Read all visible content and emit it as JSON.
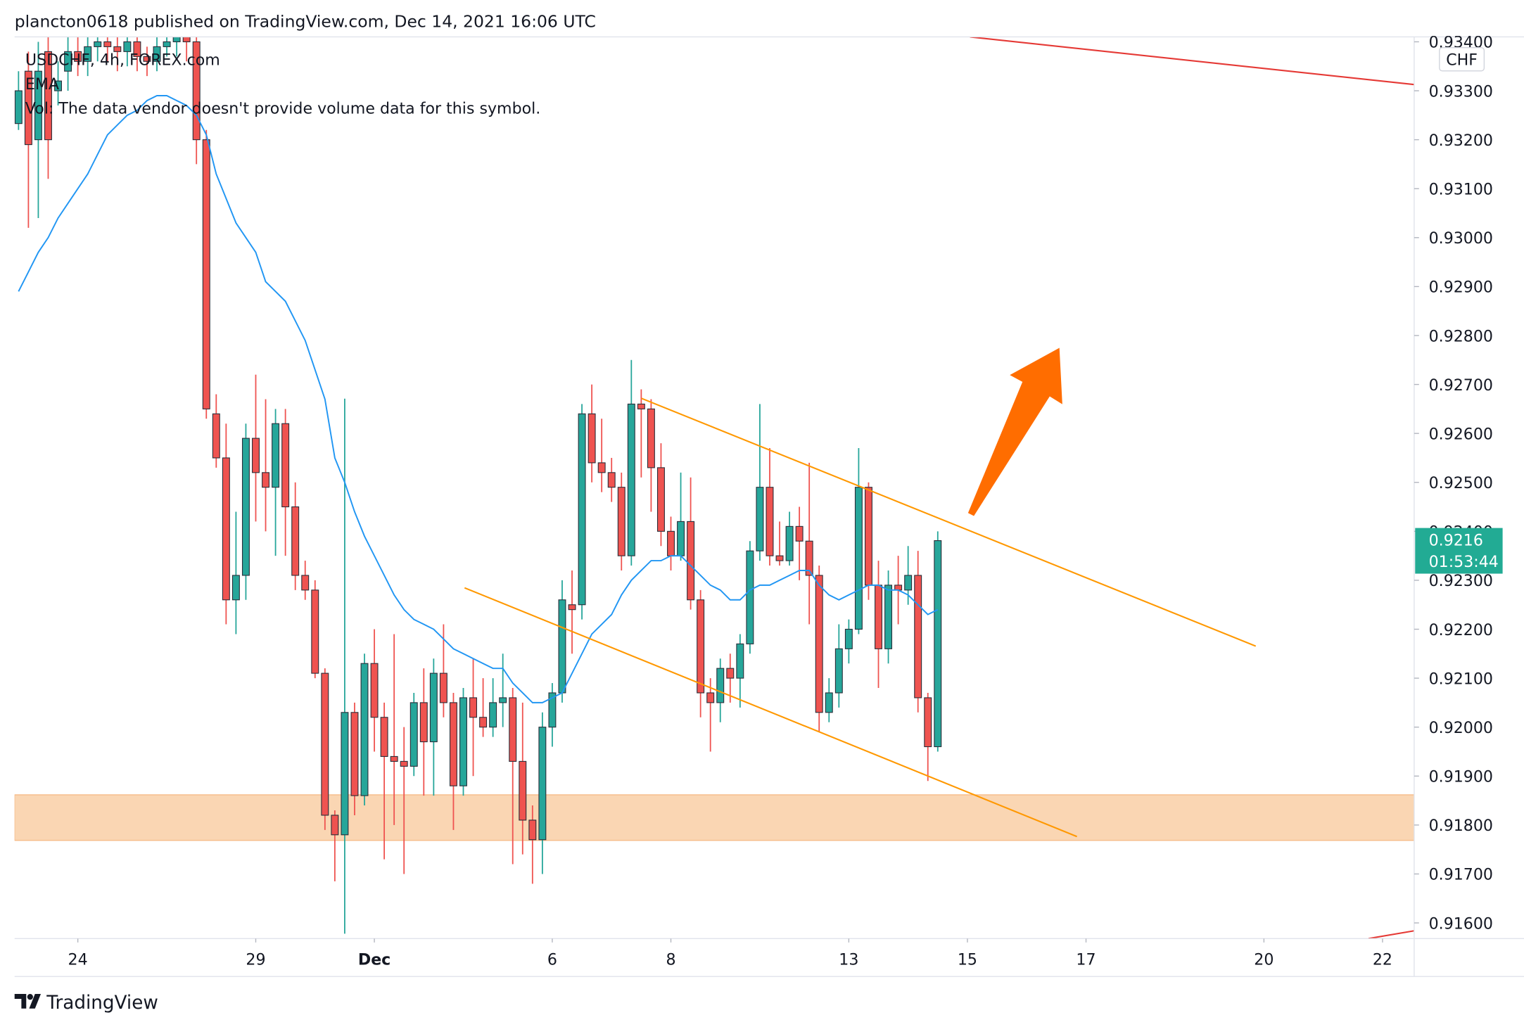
{
  "chart_data": {
    "type": "candlestick",
    "title": "plancton0618 published on TradingView.com, Dec 14, 2021 16:06 UTC",
    "symbol": "USDCHF, 4h, FOREX.com",
    "indicator": "EMA",
    "volume_note": "Vol: The data vendor doesn't provide volume data for this symbol.",
    "currency": "CHF",
    "countdown": "01:53:44",
    "brand": "TradingView",
    "xlim": [
      -6.4,
      135.2
    ],
    "xticks": [
      {
        "value": 0,
        "label": "24"
      },
      {
        "value": 18,
        "label": "29"
      },
      {
        "value": 30,
        "label": "Dec"
      },
      {
        "value": 48,
        "label": "6"
      },
      {
        "value": 60,
        "label": "8"
      },
      {
        "value": 78,
        "label": "13"
      },
      {
        "value": 90,
        "label": "15"
      },
      {
        "value": 102,
        "label": "17"
      },
      {
        "value": 120,
        "label": "20"
      },
      {
        "value": 132,
        "label": "22"
      }
    ],
    "ylim": [
      0.91568,
      0.9341
    ],
    "yticks": [
      {
        "value": 0.934,
        "label": "0.93400"
      },
      {
        "value": 0.933,
        "label": "0.93300"
      },
      {
        "value": 0.932,
        "label": "0.93200"
      },
      {
        "value": 0.931,
        "label": "0.93100"
      },
      {
        "value": 0.93,
        "label": "0.93000"
      },
      {
        "value": 0.929,
        "label": "0.92900"
      },
      {
        "value": 0.928,
        "label": "0.92800"
      },
      {
        "value": 0.927,
        "label": "0.92700"
      },
      {
        "value": 0.926,
        "label": "0.92600"
      },
      {
        "value": 0.925,
        "label": "0.92500"
      },
      {
        "value": 0.924,
        "label": "0.92400"
      },
      {
        "value": 0.923,
        "label": "0.92300"
      },
      {
        "value": 0.922,
        "label": "0.92200"
      },
      {
        "value": 0.921,
        "label": "0.92100"
      },
      {
        "value": 0.92,
        "label": "0.92000"
      },
      {
        "value": 0.919,
        "label": "0.91900"
      },
      {
        "value": 0.918,
        "label": "0.91800"
      },
      {
        "value": 0.917,
        "label": "0.91700"
      },
      {
        "value": 0.916,
        "label": "0.91600"
      }
    ],
    "up_color": "#26a69a",
    "down_color": "#ef5350",
    "ema_color": "#2196f3",
    "grid": false,
    "candles": [
      {
        "x": -6,
        "open": 0.93233,
        "high": 0.9334,
        "low": 0.9322,
        "close": 0.933,
        "ema": 0.9289
      },
      {
        "x": -5,
        "open": 0.9334,
        "high": 0.9338,
        "low": 0.9302,
        "close": 0.9319,
        "ema": 0.9293
      },
      {
        "x": -4,
        "open": 0.932,
        "high": 0.934,
        "low": 0.9304,
        "close": 0.9334,
        "ema": 0.9297
      },
      {
        "x": -3,
        "open": 0.9338,
        "high": 0.9341,
        "low": 0.9312,
        "close": 0.932,
        "ema": 0.93
      },
      {
        "x": -2,
        "open": 0.933,
        "high": 0.9336,
        "low": 0.9327,
        "close": 0.9332,
        "ema": 0.9304
      },
      {
        "x": -1,
        "open": 0.9334,
        "high": 0.9341,
        "low": 0.933,
        "close": 0.9338,
        "ema": 0.9307
      },
      {
        "x": 0,
        "open": 0.9338,
        "high": 0.9342,
        "low": 0.9333,
        "close": 0.9336,
        "ema": 0.931
      },
      {
        "x": 1,
        "open": 0.9336,
        "high": 0.9342,
        "low": 0.9333,
        "close": 0.9339,
        "ema": 0.9313
      },
      {
        "x": 2,
        "open": 0.9339,
        "high": 0.9343,
        "low": 0.9336,
        "close": 0.934,
        "ema": 0.9317
      },
      {
        "x": 3,
        "open": 0.934,
        "high": 0.9343,
        "low": 0.9336,
        "close": 0.9339,
        "ema": 0.9321
      },
      {
        "x": 4,
        "open": 0.9339,
        "high": 0.9342,
        "low": 0.9334,
        "close": 0.9338,
        "ema": 0.9323
      },
      {
        "x": 5,
        "open": 0.9338,
        "high": 0.9343,
        "low": 0.9335,
        "close": 0.934,
        "ema": 0.9325
      },
      {
        "x": 6,
        "open": 0.934,
        "high": 0.9342,
        "low": 0.9334,
        "close": 0.9337,
        "ema": 0.9326
      },
      {
        "x": 7,
        "open": 0.9337,
        "high": 0.9339,
        "low": 0.9333,
        "close": 0.9336,
        "ema": 0.9328
      },
      {
        "x": 8,
        "open": 0.9336,
        "high": 0.9342,
        "low": 0.9334,
        "close": 0.9339,
        "ema": 0.9329
      },
      {
        "x": 9,
        "open": 0.9339,
        "high": 0.9343,
        "low": 0.9337,
        "close": 0.934,
        "ema": 0.9329
      },
      {
        "x": 10,
        "open": 0.934,
        "high": 0.9344,
        "low": 0.9337,
        "close": 0.9341,
        "ema": 0.9328
      },
      {
        "x": 11,
        "open": 0.9341,
        "high": 0.9344,
        "low": 0.9336,
        "close": 0.934,
        "ema": 0.9327
      },
      {
        "x": 12,
        "open": 0.934,
        "high": 0.9342,
        "low": 0.9315,
        "close": 0.932,
        "ema": 0.9325
      },
      {
        "x": 13,
        "open": 0.932,
        "high": 0.9322,
        "low": 0.9263,
        "close": 0.9265,
        "ema": 0.9321
      },
      {
        "x": 14,
        "open": 0.9264,
        "high": 0.9268,
        "low": 0.9253,
        "close": 0.9255,
        "ema": 0.9313
      },
      {
        "x": 15,
        "open": 0.9255,
        "high": 0.9262,
        "low": 0.9221,
        "close": 0.9226,
        "ema": 0.9308
      },
      {
        "x": 16,
        "open": 0.9226,
        "high": 0.9244,
        "low": 0.9219,
        "close": 0.9231,
        "ema": 0.9303
      },
      {
        "x": 17,
        "open": 0.9231,
        "high": 0.9262,
        "low": 0.9226,
        "close": 0.9259,
        "ema": 0.93
      },
      {
        "x": 18,
        "open": 0.9259,
        "high": 0.9272,
        "low": 0.9242,
        "close": 0.9252,
        "ema": 0.9297
      },
      {
        "x": 19,
        "open": 0.9252,
        "high": 0.9267,
        "low": 0.924,
        "close": 0.9249,
        "ema": 0.9291
      },
      {
        "x": 20,
        "open": 0.9249,
        "high": 0.9265,
        "low": 0.9235,
        "close": 0.9262,
        "ema": 0.9289
      },
      {
        "x": 21,
        "open": 0.9262,
        "high": 0.9265,
        "low": 0.9235,
        "close": 0.9245,
        "ema": 0.9287
      },
      {
        "x": 22,
        "open": 0.9245,
        "high": 0.925,
        "low": 0.9228,
        "close": 0.9231,
        "ema": 0.9283
      },
      {
        "x": 23,
        "open": 0.9231,
        "high": 0.9234,
        "low": 0.9226,
        "close": 0.9228,
        "ema": 0.9279
      },
      {
        "x": 24,
        "open": 0.9228,
        "high": 0.923,
        "low": 0.921,
        "close": 0.9211,
        "ema": 0.9273
      },
      {
        "x": 25,
        "open": 0.9211,
        "high": 0.9212,
        "low": 0.9179,
        "close": 0.9182,
        "ema": 0.9267
      },
      {
        "x": 26,
        "open": 0.9182,
        "high": 0.9183,
        "low": 0.91685,
        "close": 0.9178,
        "ema": 0.9255
      },
      {
        "x": 27,
        "open": 0.9178,
        "high": 0.92671,
        "low": 0.91578,
        "close": 0.9203,
        "ema": 0.925
      },
      {
        "x": 28,
        "open": 0.9203,
        "high": 0.9205,
        "low": 0.9182,
        "close": 0.9186,
        "ema": 0.9244
      },
      {
        "x": 29,
        "open": 0.9186,
        "high": 0.9215,
        "low": 0.9184,
        "close": 0.9213,
        "ema": 0.9239
      },
      {
        "x": 30,
        "open": 0.9213,
        "high": 0.922,
        "low": 0.9195,
        "close": 0.9202,
        "ema": 0.9235
      },
      {
        "x": 31,
        "open": 0.9202,
        "high": 0.9205,
        "low": 0.9173,
        "close": 0.9194,
        "ema": 0.9231
      },
      {
        "x": 32,
        "open": 0.9194,
        "high": 0.9219,
        "low": 0.918,
        "close": 0.9193,
        "ema": 0.9227
      },
      {
        "x": 33,
        "open": 0.9193,
        "high": 0.92,
        "low": 0.917,
        "close": 0.9192,
        "ema": 0.9224
      },
      {
        "x": 34,
        "open": 0.9192,
        "high": 0.9207,
        "low": 0.919,
        "close": 0.9205,
        "ema": 0.9222
      },
      {
        "x": 35,
        "open": 0.9205,
        "high": 0.9212,
        "low": 0.9186,
        "close": 0.9197,
        "ema": 0.9221
      },
      {
        "x": 36,
        "open": 0.9197,
        "high": 0.9214,
        "low": 0.9186,
        "close": 0.9211,
        "ema": 0.922
      },
      {
        "x": 37,
        "open": 0.9211,
        "high": 0.9221,
        "low": 0.9202,
        "close": 0.9205,
        "ema": 0.9218
      },
      {
        "x": 38,
        "open": 0.9205,
        "high": 0.9207,
        "low": 0.9179,
        "close": 0.9188,
        "ema": 0.9216
      },
      {
        "x": 39,
        "open": 0.9188,
        "high": 0.9208,
        "low": 0.9186,
        "close": 0.9206,
        "ema": 0.9215
      },
      {
        "x": 40,
        "open": 0.9206,
        "high": 0.9214,
        "low": 0.919,
        "close": 0.9202,
        "ema": 0.9214
      },
      {
        "x": 41,
        "open": 0.9202,
        "high": 0.921,
        "low": 0.9198,
        "close": 0.92,
        "ema": 0.9213
      },
      {
        "x": 42,
        "open": 0.92,
        "high": 0.921,
        "low": 0.9198,
        "close": 0.9205,
        "ema": 0.9212
      },
      {
        "x": 43,
        "open": 0.9205,
        "high": 0.9215,
        "low": 0.92,
        "close": 0.9206,
        "ema": 0.9212
      },
      {
        "x": 44,
        "open": 0.9206,
        "high": 0.9208,
        "low": 0.9172,
        "close": 0.9193,
        "ema": 0.9209
      },
      {
        "x": 45,
        "open": 0.9193,
        "high": 0.9205,
        "low": 0.9174,
        "close": 0.9181,
        "ema": 0.9207
      },
      {
        "x": 46,
        "open": 0.9181,
        "high": 0.9184,
        "low": 0.9168,
        "close": 0.9177,
        "ema": 0.9205
      },
      {
        "x": 47,
        "open": 0.9177,
        "high": 0.9203,
        "low": 0.917,
        "close": 0.92,
        "ema": 0.9205
      },
      {
        "x": 48,
        "open": 0.92,
        "high": 0.9209,
        "low": 0.9196,
        "close": 0.9207,
        "ema": 0.9206
      },
      {
        "x": 49,
        "open": 0.9207,
        "high": 0.923,
        "low": 0.9205,
        "close": 0.9226,
        "ema": 0.9207
      },
      {
        "x": 50,
        "open": 0.9225,
        "high": 0.9232,
        "low": 0.9215,
        "close": 0.9224,
        "ema": 0.9211
      },
      {
        "x": 51,
        "open": 0.9225,
        "high": 0.9266,
        "low": 0.9222,
        "close": 0.9264,
        "ema": 0.9215
      },
      {
        "x": 52,
        "open": 0.9264,
        "high": 0.927,
        "low": 0.925,
        "close": 0.9254,
        "ema": 0.9219
      },
      {
        "x": 53,
        "open": 0.9254,
        "high": 0.9263,
        "low": 0.9248,
        "close": 0.9252,
        "ema": 0.9221
      },
      {
        "x": 54,
        "open": 0.9252,
        "high": 0.9255,
        "low": 0.9246,
        "close": 0.9249,
        "ema": 0.9223
      },
      {
        "x": 55,
        "open": 0.9249,
        "high": 0.9252,
        "low": 0.9232,
        "close": 0.9235,
        "ema": 0.9227
      },
      {
        "x": 56,
        "open": 0.9235,
        "high": 0.9275,
        "low": 0.9233,
        "close": 0.9266,
        "ema": 0.923
      },
      {
        "x": 57,
        "open": 0.9266,
        "high": 0.9269,
        "low": 0.9251,
        "close": 0.9265,
        "ema": 0.9232
      },
      {
        "x": 58,
        "open": 0.9265,
        "high": 0.9267,
        "low": 0.9244,
        "close": 0.9253,
        "ema": 0.9234
      },
      {
        "x": 59,
        "open": 0.9253,
        "high": 0.9258,
        "low": 0.9237,
        "close": 0.924,
        "ema": 0.9234
      },
      {
        "x": 60,
        "open": 0.924,
        "high": 0.9243,
        "low": 0.9232,
        "close": 0.9235,
        "ema": 0.9235
      },
      {
        "x": 61,
        "open": 0.9235,
        "high": 0.9252,
        "low": 0.9234,
        "close": 0.9242,
        "ema": 0.9235
      },
      {
        "x": 62,
        "open": 0.9242,
        "high": 0.9251,
        "low": 0.9224,
        "close": 0.9226,
        "ema": 0.9233
      },
      {
        "x": 63,
        "open": 0.9226,
        "high": 0.9228,
        "low": 0.9202,
        "close": 0.9207,
        "ema": 0.9231
      },
      {
        "x": 64,
        "open": 0.9207,
        "high": 0.921,
        "low": 0.9195,
        "close": 0.9205,
        "ema": 0.9229
      },
      {
        "x": 65,
        "open": 0.9205,
        "high": 0.9214,
        "low": 0.9201,
        "close": 0.9212,
        "ema": 0.9228
      },
      {
        "x": 66,
        "open": 0.9212,
        "high": 0.9215,
        "low": 0.9205,
        "close": 0.921,
        "ema": 0.9226
      },
      {
        "x": 67,
        "open": 0.921,
        "high": 0.9219,
        "low": 0.9204,
        "close": 0.9217,
        "ema": 0.9226
      },
      {
        "x": 68,
        "open": 0.9217,
        "high": 0.9238,
        "low": 0.9215,
        "close": 0.9236,
        "ema": 0.9228
      },
      {
        "x": 69,
        "open": 0.9236,
        "high": 0.9266,
        "low": 0.9234,
        "close": 0.9249,
        "ema": 0.9229
      },
      {
        "x": 70,
        "open": 0.9249,
        "high": 0.9257,
        "low": 0.9233,
        "close": 0.9235,
        "ema": 0.9229
      },
      {
        "x": 71,
        "open": 0.9235,
        "high": 0.9242,
        "low": 0.9233,
        "close": 0.9234,
        "ema": 0.923
      },
      {
        "x": 72,
        "open": 0.9234,
        "high": 0.9244,
        "low": 0.9233,
        "close": 0.9241,
        "ema": 0.9231
      },
      {
        "x": 73,
        "open": 0.9241,
        "high": 0.9245,
        "low": 0.923,
        "close": 0.9238,
        "ema": 0.9232
      },
      {
        "x": 74,
        "open": 0.9238,
        "high": 0.9254,
        "low": 0.9221,
        "close": 0.9231,
        "ema": 0.9232
      },
      {
        "x": 75,
        "open": 0.9231,
        "high": 0.9233,
        "low": 0.9199,
        "close": 0.9203,
        "ema": 0.9229
      },
      {
        "x": 76,
        "open": 0.9203,
        "high": 0.921,
        "low": 0.9201,
        "close": 0.9207,
        "ema": 0.9227
      },
      {
        "x": 77,
        "open": 0.9207,
        "high": 0.9221,
        "low": 0.9204,
        "close": 0.9216,
        "ema": 0.9226
      },
      {
        "x": 78,
        "open": 0.9216,
        "high": 0.9222,
        "low": 0.9213,
        "close": 0.922,
        "ema": 0.9227
      },
      {
        "x": 79,
        "open": 0.922,
        "high": 0.9257,
        "low": 0.9219,
        "close": 0.9249,
        "ema": 0.9228
      },
      {
        "x": 80,
        "open": 0.9249,
        "high": 0.925,
        "low": 0.9226,
        "close": 0.9229,
        "ema": 0.9229
      },
      {
        "x": 81,
        "open": 0.9229,
        "high": 0.9234,
        "low": 0.9208,
        "close": 0.9216,
        "ema": 0.9229
      },
      {
        "x": 82,
        "open": 0.9216,
        "high": 0.9232,
        "low": 0.9213,
        "close": 0.9229,
        "ema": 0.9228
      },
      {
        "x": 83,
        "open": 0.9229,
        "high": 0.9235,
        "low": 0.9221,
        "close": 0.9228,
        "ema": 0.9228
      },
      {
        "x": 84,
        "open": 0.9228,
        "high": 0.9237,
        "low": 0.9225,
        "close": 0.9231,
        "ema": 0.9227
      },
      {
        "x": 85,
        "open": 0.9231,
        "high": 0.9236,
        "low": 0.9203,
        "close": 0.9206,
        "ema": 0.9225
      },
      {
        "x": 86,
        "open": 0.9206,
        "high": 0.9207,
        "low": 0.9189,
        "close": 0.9196,
        "ema": 0.9223
      },
      {
        "x": 87,
        "open": 0.9196,
        "high": 0.924,
        "low": 0.9195,
        "close": 0.92381,
        "ema": 0.9224
      }
    ]
  }
}
